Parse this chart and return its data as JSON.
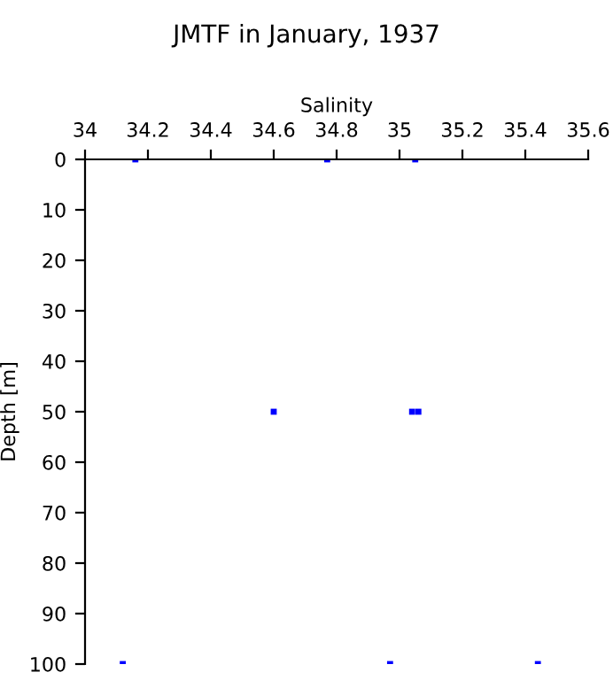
{
  "chart_data": {
    "type": "scatter",
    "title": "JMTF in January, 1937",
    "xlabel": "Salinity",
    "ylabel": "Depth [m]",
    "x": [
      34.16,
      34.77,
      35.05,
      34.6,
      35.04,
      35.06,
      34.12,
      34.97,
      35.44
    ],
    "values": [
      0,
      0,
      0,
      50,
      50,
      50,
      100,
      100,
      100
    ],
    "color": "#0000ff",
    "marker": "square",
    "grid": false,
    "legend": false,
    "xlim": [
      34,
      35.6
    ],
    "xticks": [
      34,
      34.2,
      34.4,
      34.6,
      34.8,
      35,
      35.2,
      35.4,
      35.6
    ],
    "ylim": [
      100,
      0
    ],
    "yticks": [
      0,
      10,
      20,
      30,
      40,
      50,
      60,
      70,
      80,
      90,
      100
    ]
  }
}
